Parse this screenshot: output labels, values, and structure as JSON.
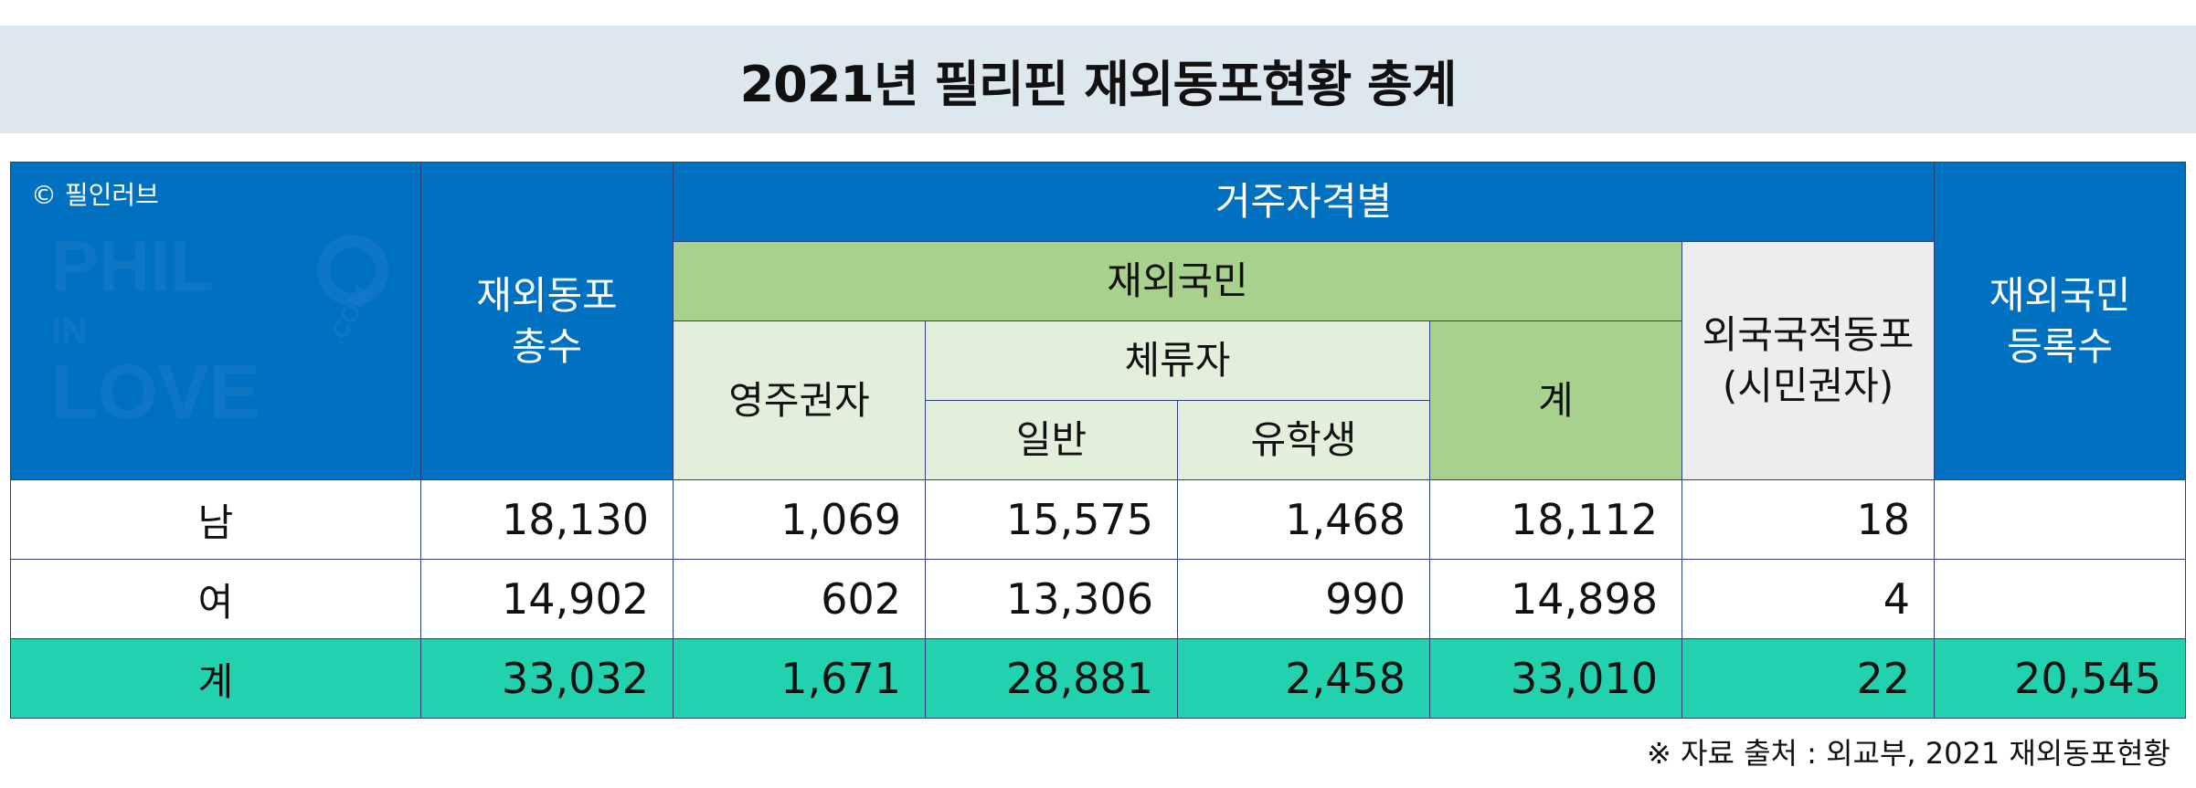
{
  "title": "2021년 필리핀 재외동포현황 총계",
  "watermark": {
    "copyright": "© 필인러브",
    "logo_text": "PHIL IN LOVE .COM"
  },
  "headers": {
    "total_overseas": "재외동포 총수",
    "by_residency": "거주자격별",
    "nationals": "재외국민",
    "permanent": "영주권자",
    "sojourner": "체류자",
    "general": "일반",
    "student": "유학생",
    "subtotal": "계",
    "foreign_nationals": "외국국적동포 (시민권자)",
    "registered": "재외국민 등록수"
  },
  "rows": [
    {
      "label": "남",
      "total": "18,130",
      "permanent": "1,069",
      "general": "15,575",
      "student": "1,468",
      "subtotal": "18,112",
      "foreign": "18",
      "registered": ""
    },
    {
      "label": "여",
      "total": "14,902",
      "permanent": "602",
      "general": "13,306",
      "student": "990",
      "subtotal": "14,898",
      "foreign": "4",
      "registered": ""
    },
    {
      "label": "계",
      "total": "33,032",
      "permanent": "1,671",
      "general": "28,881",
      "student": "2,458",
      "subtotal": "33,010",
      "foreign": "22",
      "registered": "20,545"
    }
  ],
  "source": "※ 자료 출처 :  외교부, 2021 재외동포현황",
  "colors": {
    "header_blue": "#0070c0",
    "nationals_green": "#a9d18e",
    "light_green": "#e2efda",
    "gray": "#ededed",
    "total_row_teal": "#22d1ae",
    "title_band": "#dde7ee"
  }
}
